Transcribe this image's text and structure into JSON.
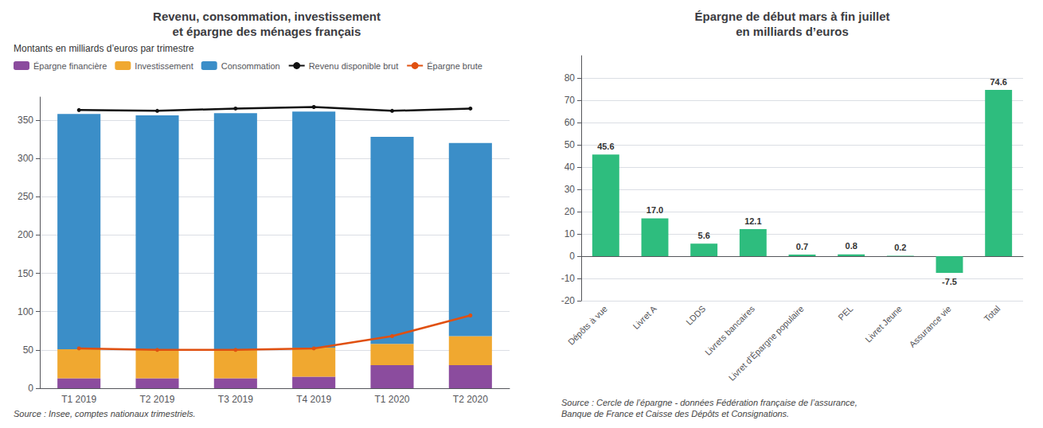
{
  "chart_data": [
    {
      "type": "bar",
      "title": "Revenu, consommation, investissement\net épargne des ménages français",
      "subtitle": "Montants en milliards d’euros par trimestre",
      "annotations": [
        "Source : Insee, comptes nationaux trimestriels."
      ],
      "categories": [
        "T1 2019",
        "T2 2019",
        "T3 2019",
        "T4 2019",
        "T1 2020",
        "T2 2020"
      ],
      "stacked": true,
      "series": [
        {
          "name": "Épargne financière",
          "type": "bar",
          "color": "#8b4c9e",
          "values": [
            13,
            13,
            13,
            15,
            30,
            30
          ]
        },
        {
          "name": "Investissement",
          "type": "bar",
          "color": "#f0a830",
          "values": [
            38,
            38,
            38,
            38,
            28,
            38
          ]
        },
        {
          "name": "Consommation",
          "type": "bar",
          "color": "#3b8ec8",
          "values": [
            307,
            305,
            308,
            308,
            270,
            252
          ]
        },
        {
          "name": "Revenu disponible brut",
          "type": "line",
          "color": "#111111",
          "values": [
            363,
            362,
            365,
            367,
            362,
            365
          ]
        },
        {
          "name": "Épargne brute",
          "type": "line",
          "color": "#e05010",
          "values": [
            52,
            50,
            50,
            52,
            68,
            95
          ]
        }
      ],
      "ylim": [
        0,
        380
      ],
      "yticks": [
        0,
        50,
        100,
        150,
        200,
        250,
        300,
        350
      ],
      "grid": true,
      "legend": "upper left"
    },
    {
      "type": "bar",
      "title": "Épargne de début mars à fin juillet\nen milliards d’euros",
      "annotations": [
        "Source : Cercle de l’épargne - données Fédération française de l’assurance,\nBanque de France et Caisse des Dépôts et Consignations."
      ],
      "categories": [
        "Dépôts à vue",
        "Livret A",
        "LDDS",
        "Livrets bancaires",
        "Livret d’Épargne populaire",
        "PEL",
        "Livret Jeune",
        "Assurance vie",
        "Total"
      ],
      "values": [
        45.6,
        17.0,
        5.6,
        12.1,
        0.7,
        0.8,
        0.2,
        -7.5,
        74.6
      ],
      "value_labels": [
        "45.6",
        "17.0",
        "5.6",
        "12.1",
        "0.7",
        "0.8",
        "0.2",
        "-7.5",
        "74.6"
      ],
      "color": "#2ebd7e",
      "ylim": [
        -20,
        90
      ],
      "yticks": [
        -20,
        -10,
        0,
        10,
        20,
        30,
        40,
        50,
        60,
        70,
        80
      ],
      "grid": true,
      "data_labels": true
    }
  ]
}
